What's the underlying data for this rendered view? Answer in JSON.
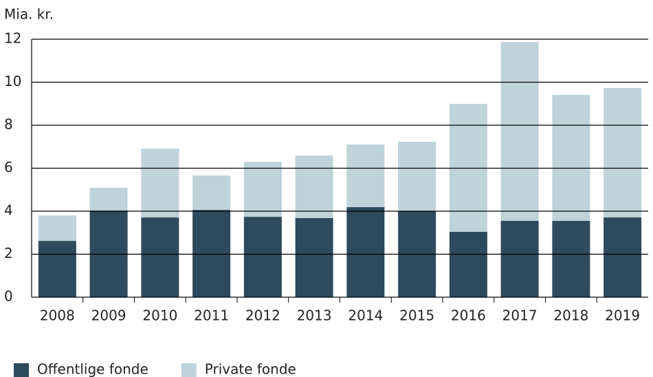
{
  "chart_data": {
    "type": "stacked-bar",
    "y_label": "Mia. kr.",
    "categories": [
      "2008",
      "2009",
      "2010",
      "2011",
      "2012",
      "2013",
      "2014",
      "2015",
      "2016",
      "2017",
      "2018",
      "2019"
    ],
    "series": [
      {
        "name": "Offentlige fonde",
        "color": "#2d4a5e",
        "values": [
          2.62,
          4.03,
          3.71,
          4.06,
          3.74,
          3.68,
          4.19,
          4.0,
          3.04,
          3.55,
          3.55,
          3.71
        ]
      },
      {
        "name": "Private fonde",
        "color": "#bed3da",
        "values": [
          1.18,
          1.06,
          3.2,
          1.6,
          2.56,
          2.91,
          2.91,
          3.23,
          5.95,
          8.32,
          5.86,
          6.02
        ]
      }
    ],
    "ylim": [
      0,
      12
    ],
    "yticks": [
      0,
      2,
      4,
      6,
      8,
      10,
      12
    ],
    "grid": true,
    "legend": "bottom-left"
  }
}
